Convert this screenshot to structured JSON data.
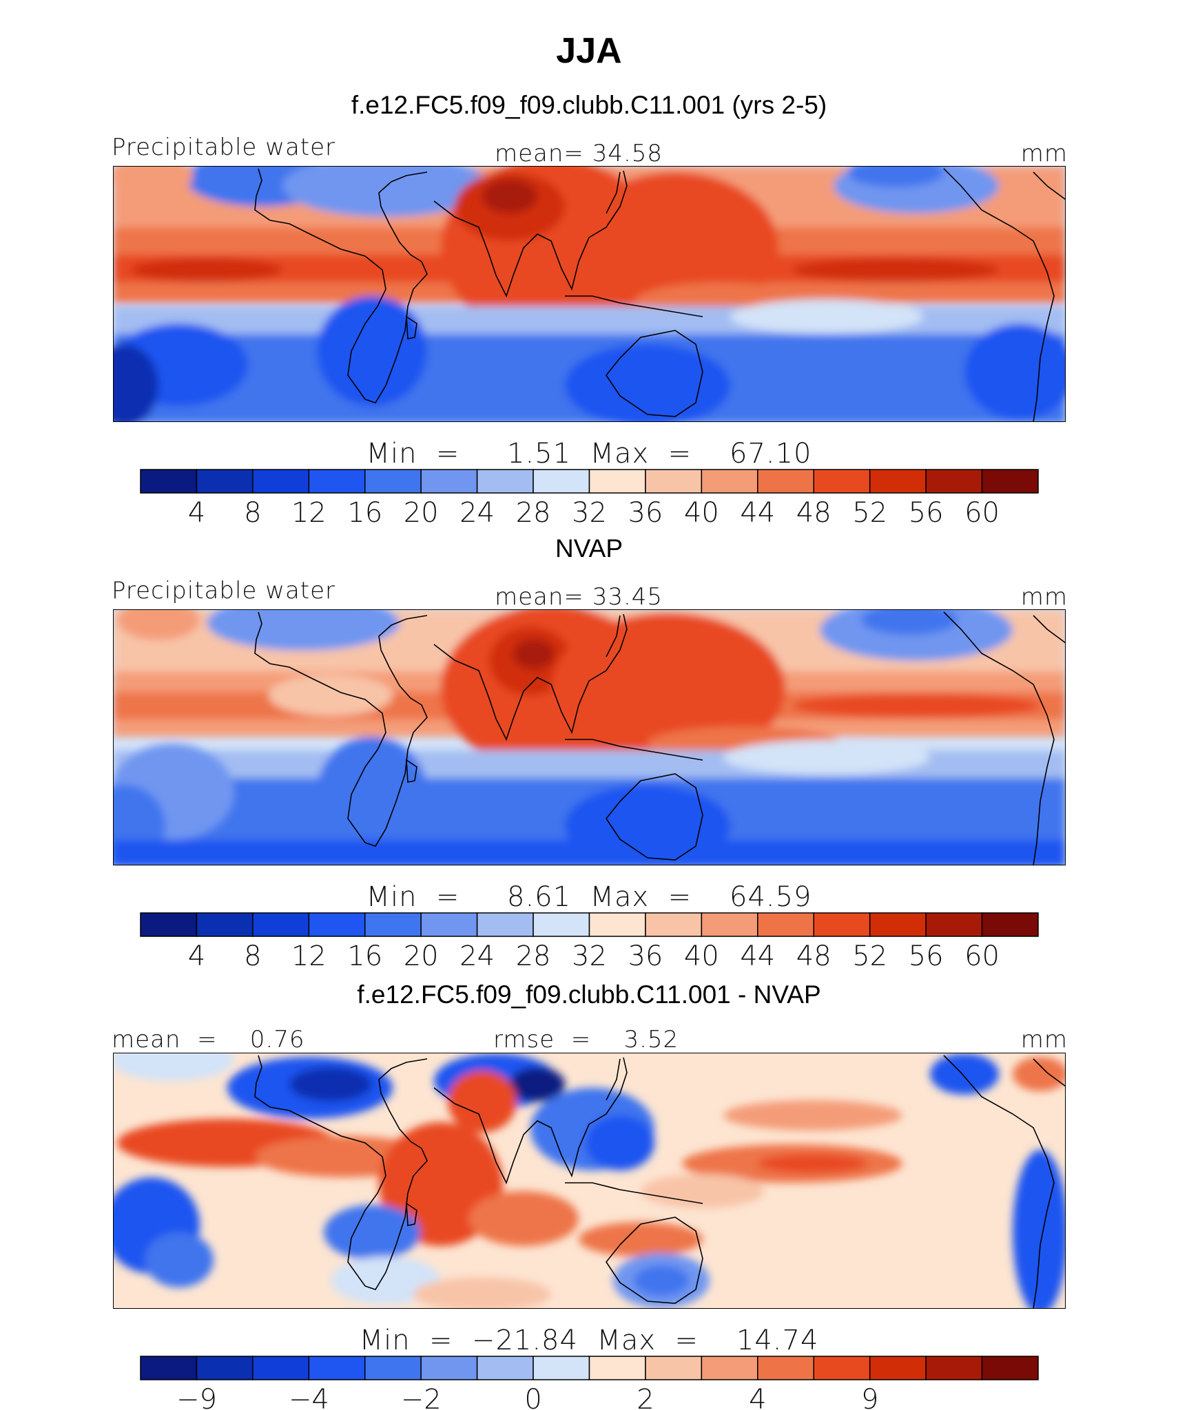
{
  "title": "JJA",
  "units_label": "mm",
  "palette_abs": [
    "#0a1a80",
    "#0a2fb0",
    "#0f3fd8",
    "#1f55f0",
    "#3f75ee",
    "#7096f0",
    "#a3bdf2",
    "#d3e3f8",
    "#fde5d2",
    "#f8c4a8",
    "#f49c78",
    "#ee7448",
    "#e84a20",
    "#d12e08",
    "#a81a08",
    "#7a0a05"
  ],
  "palette_diff": [
    "#0a1a80",
    "#0a2fb0",
    "#0f3fd8",
    "#1f55f0",
    "#3f75ee",
    "#7096f0",
    "#a3bdf2",
    "#d3e3f8",
    "#fde5d2",
    "#f8c4a8",
    "#f49c78",
    "#ee7448",
    "#e84a20",
    "#d12e08",
    "#a81a08",
    "#7a0a05"
  ],
  "panels": [
    {
      "id": "model",
      "header": "f.e12.FC5.f09_f09.clubb.C11.001 (yrs 2-5)",
      "left_label": "Precipitable water",
      "center_label": "mean=   34.58",
      "right_label": "mm",
      "minmax_label": "Min  =     1.51  Max  =    67.10",
      "colorbar_ticks": [
        "4",
        "8",
        "12",
        "16",
        "20",
        "24",
        "28",
        "32",
        "36",
        "40",
        "44",
        "48",
        "52",
        "56",
        "60"
      ]
    },
    {
      "id": "obs",
      "header": "NVAP",
      "left_label": "Precipitable water",
      "center_label": "mean=   33.45",
      "right_label": "mm",
      "minmax_label": "Min  =     8.61  Max  =    64.59",
      "colorbar_ticks": [
        "4",
        "8",
        "12",
        "16",
        "20",
        "24",
        "28",
        "32",
        "36",
        "40",
        "44",
        "48",
        "52",
        "56",
        "60"
      ]
    },
    {
      "id": "diff",
      "header": "f.e12.FC5.f09_f09.clubb.C11.001 - NVAP",
      "left_label": "mean  =    0.76",
      "center_label": "rmse  =    3.52",
      "right_label": "mm",
      "minmax_label": "Min  =  −21.84  Max  =    14.74",
      "colorbar_ticks": [
        "−9",
        "",
        "−4",
        "",
        "−2",
        "",
        "0",
        "",
        "2",
        "",
        "4",
        "",
        "9",
        "",
        ""
      ]
    }
  ]
}
